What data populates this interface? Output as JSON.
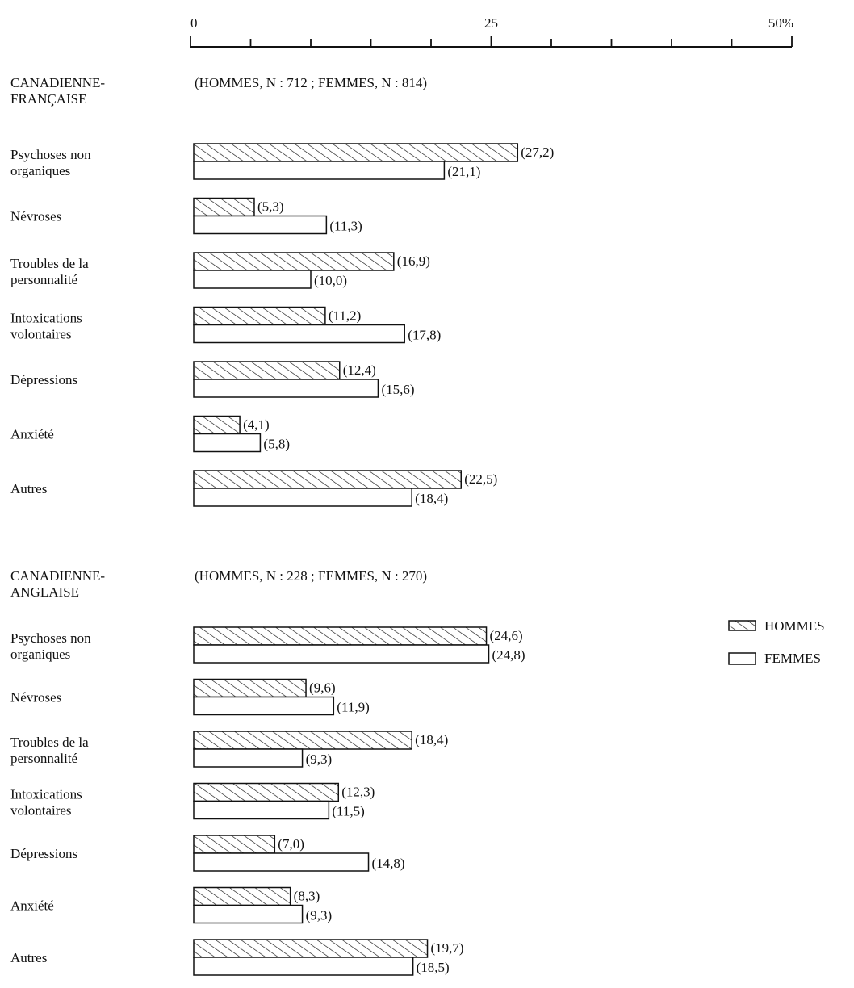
{
  "chart_data": {
    "type": "bar",
    "orientation": "horizontal",
    "axis": {
      "ticks": [
        {
          "value": 0,
          "label": "0"
        },
        {
          "value": 25,
          "label": "25"
        },
        {
          "value": 50,
          "label": "50%"
        }
      ],
      "minor_step": 5,
      "range": [
        0,
        50
      ]
    },
    "series_names": [
      "HOMMES",
      "FEMMES"
    ],
    "colors": {
      "ink": "#111111",
      "fill": "#ffffff"
    },
    "legend": {
      "position": "right",
      "items": [
        "HOMMES",
        "FEMMES"
      ]
    },
    "groups": [
      {
        "title": [
          "CANADIENNE-",
          "FRANÇAISE"
        ],
        "n_label": "(HOMMES, N : 712 ;    FEMMES, N : 814)",
        "categories": [
          {
            "label": [
              "Psychoses non",
              "organiques"
            ],
            "hommes": 27.2,
            "femmes": 21.1,
            "hommes_label": "(27,2)",
            "femmes_label": "(21,1)"
          },
          {
            "label": [
              "Névroses"
            ],
            "hommes": 5.3,
            "femmes": 11.3,
            "hommes_label": "(5,3)",
            "femmes_label": "(11,3)"
          },
          {
            "label": [
              "Troubles de la",
              "personnalité"
            ],
            "hommes": 16.9,
            "femmes": 10.0,
            "hommes_label": "(16,9)",
            "femmes_label": "(10,0)"
          },
          {
            "label": [
              "Intoxications",
              "volontaires"
            ],
            "hommes": 11.2,
            "femmes": 17.8,
            "hommes_label": "(11,2)",
            "femmes_label": "(17,8)"
          },
          {
            "label": [
              "Dépressions"
            ],
            "hommes": 12.4,
            "femmes": 15.6,
            "hommes_label": "(12,4)",
            "femmes_label": "(15,6)"
          },
          {
            "label": [
              "Anxiété"
            ],
            "hommes": 4.1,
            "femmes": 5.8,
            "hommes_label": "(4,1)",
            "femmes_label": "(5,8)"
          },
          {
            "label": [
              "Autres"
            ],
            "hommes": 22.5,
            "femmes": 18.4,
            "hommes_label": "(22,5)",
            "femmes_label": "(18,4)"
          }
        ]
      },
      {
        "title": [
          "CANADIENNE-",
          "ANGLAISE"
        ],
        "n_label": "(HOMMES, N : 228 ;    FEMMES, N : 270)",
        "categories": [
          {
            "label": [
              "Psychoses non",
              "organiques"
            ],
            "hommes": 24.6,
            "femmes": 24.8,
            "hommes_label": "(24,6)",
            "femmes_label": "(24,8)"
          },
          {
            "label": [
              "Névroses"
            ],
            "hommes": 9.6,
            "femmes": 11.9,
            "hommes_label": "(9,6)",
            "femmes_label": "(11,9)"
          },
          {
            "label": [
              "Troubles de la",
              "personnalité"
            ],
            "hommes": 18.4,
            "femmes": 9.3,
            "hommes_label": "(18,4)",
            "femmes_label": "(9,3)"
          },
          {
            "label": [
              "Intoxications",
              "volontaires"
            ],
            "hommes": 12.3,
            "femmes": 11.5,
            "hommes_label": "(12,3)",
            "femmes_label": "(11,5)"
          },
          {
            "label": [
              "Dépressions"
            ],
            "hommes": 7.0,
            "femmes": 14.8,
            "hommes_label": "(7,0)",
            "femmes_label": "(14,8)"
          },
          {
            "label": [
              "Anxiété"
            ],
            "hommes": 8.3,
            "femmes": 9.3,
            "hommes_label": "(8,3)",
            "femmes_label": "(9,3)"
          },
          {
            "label": [
              "Autres"
            ],
            "hommes": 19.7,
            "femmes": 18.5,
            "hommes_label": "(19,7)",
            "femmes_label": "(18,5)"
          }
        ]
      }
    ]
  }
}
